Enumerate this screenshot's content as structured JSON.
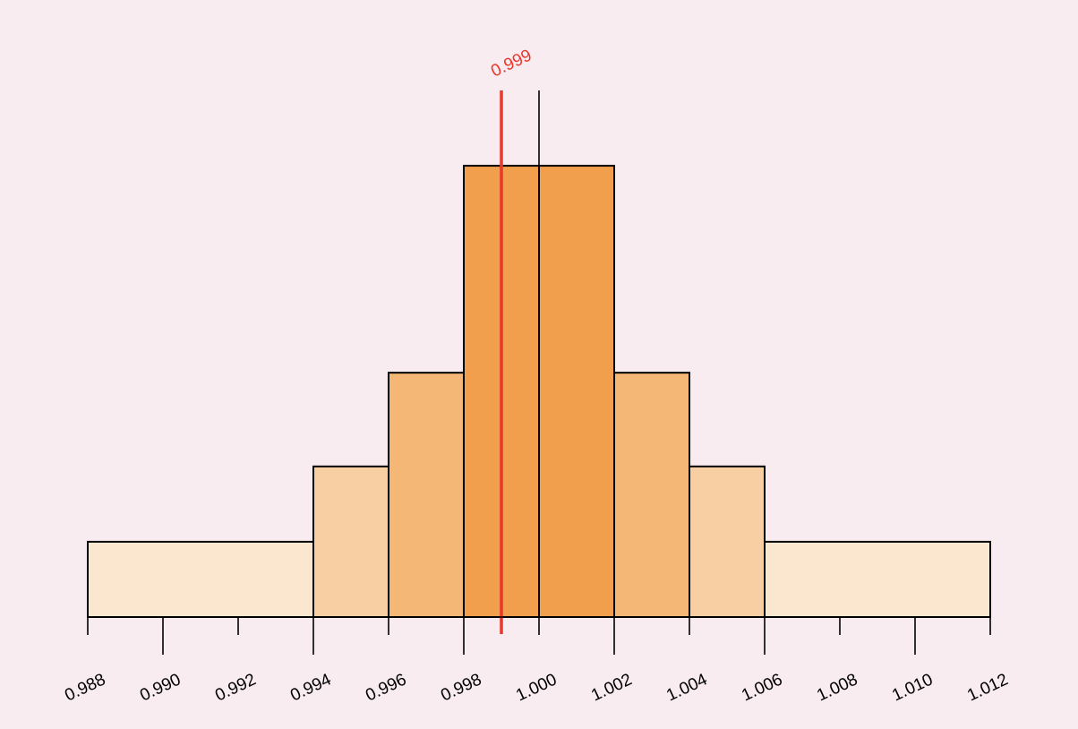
{
  "chart_data": {
    "type": "bar",
    "title": "",
    "xlabel": "",
    "ylabel": "",
    "x_range": [
      0.988,
      1.012
    ],
    "y_range": [
      0,
      1
    ],
    "grid": false,
    "legend": "none",
    "bins": [
      {
        "x0": 0.988,
        "x1": 0.994,
        "value": 0.143,
        "color": "#fbe6d0"
      },
      {
        "x0": 0.994,
        "x1": 0.996,
        "value": 0.286,
        "color": "#f8cea3"
      },
      {
        "x0": 0.996,
        "x1": 0.998,
        "value": 0.464,
        "color": "#f5b776"
      },
      {
        "x0": 0.998,
        "x1": 1.0,
        "value": 0.857,
        "color": "#f29f4d"
      },
      {
        "x0": 1.0,
        "x1": 1.002,
        "value": 0.857,
        "color": "#f29f4d"
      },
      {
        "x0": 1.002,
        "x1": 1.004,
        "value": 0.464,
        "color": "#f5b776"
      },
      {
        "x0": 1.004,
        "x1": 1.006,
        "value": 0.286,
        "color": "#f8cea3"
      },
      {
        "x0": 1.006,
        "x1": 1.012,
        "value": 0.143,
        "color": "#fbe6d0"
      }
    ],
    "center_line": {
      "x": 1.0
    },
    "marker": {
      "x": 0.999,
      "label": "0.999",
      "color": "#e8372b"
    },
    "ticks": [
      {
        "value": 0.988,
        "label": "0.988"
      },
      {
        "value": 0.99,
        "label": "0.990"
      },
      {
        "value": 0.992,
        "label": "0.992"
      },
      {
        "value": 0.994,
        "label": "0.994"
      },
      {
        "value": 0.996,
        "label": "0.996"
      },
      {
        "value": 0.998,
        "label": "0.998"
      },
      {
        "value": 1.0,
        "label": "1.000"
      },
      {
        "value": 1.002,
        "label": "1.002"
      },
      {
        "value": 1.004,
        "label": "1.004"
      },
      {
        "value": 1.006,
        "label": "1.006"
      },
      {
        "value": 1.008,
        "label": "1.008"
      },
      {
        "value": 1.01,
        "label": "1.010"
      },
      {
        "value": 1.012,
        "label": "1.012"
      }
    ]
  }
}
